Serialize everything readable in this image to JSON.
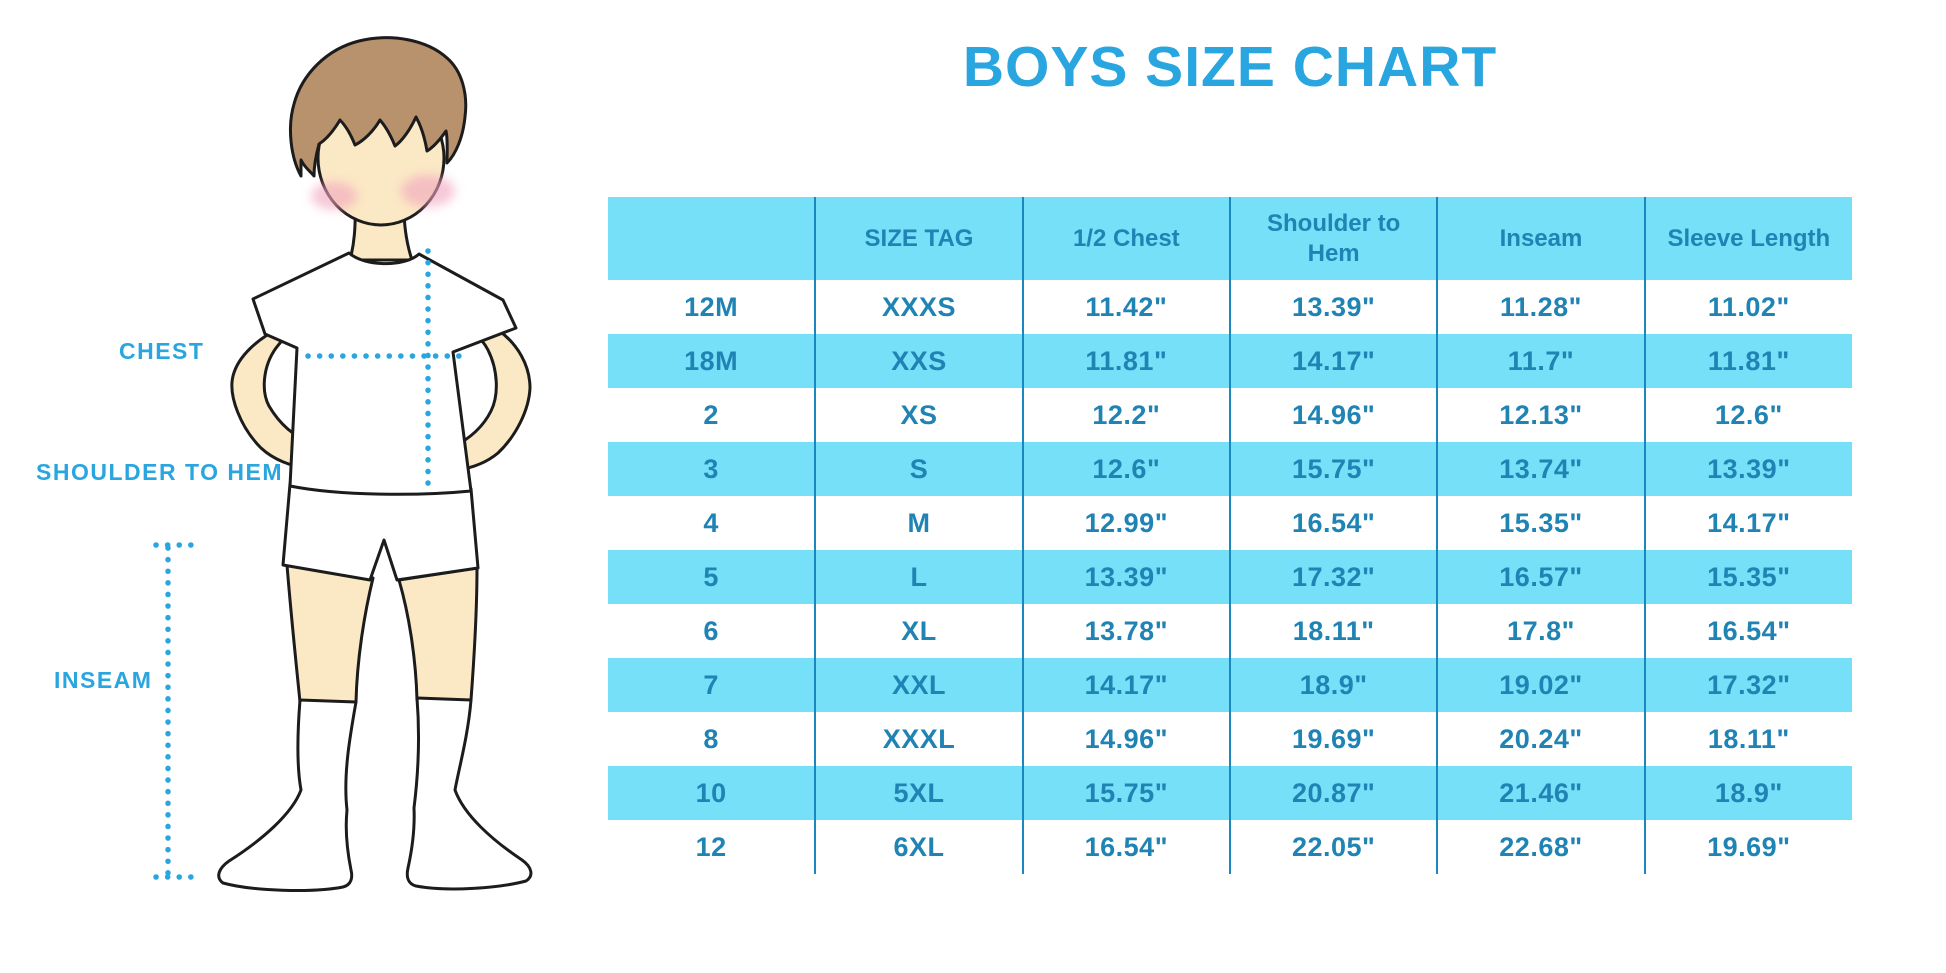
{
  "chart_data": {
    "type": "table",
    "title": "BOYS SIZE CHART",
    "columns": [
      "",
      "SIZE TAG",
      "1/2 Chest",
      "Shoulder to Hem",
      "Inseam",
      "Sleeve Length"
    ],
    "rows": [
      [
        "12M",
        "XXXS",
        "11.42\"",
        "13.39\"",
        "11.28\"",
        "11.02\""
      ],
      [
        "18M",
        "XXS",
        "11.81\"",
        "14.17\"",
        "11.7\"",
        "11.81\""
      ],
      [
        "2",
        "XS",
        "12.2\"",
        "14.96\"",
        "12.13\"",
        "12.6\""
      ],
      [
        "3",
        "S",
        "12.6\"",
        "15.75\"",
        "13.74\"",
        "13.39\""
      ],
      [
        "4",
        "M",
        "12.99\"",
        "16.54\"",
        "15.35\"",
        "14.17\""
      ],
      [
        "5",
        "L",
        "13.39\"",
        "17.32\"",
        "16.57\"",
        "15.35\""
      ],
      [
        "6",
        "XL",
        "13.78\"",
        "18.11\"",
        "17.8\"",
        "16.54\""
      ],
      [
        "7",
        "XXL",
        "14.17\"",
        "18.9\"",
        "19.02\"",
        "17.32\""
      ],
      [
        "8",
        "XXXL",
        "14.96\"",
        "19.69\"",
        "20.24\"",
        "18.11\""
      ],
      [
        "10",
        "5XL",
        "15.75\"",
        "20.87\"",
        "21.46\"",
        "18.9\""
      ],
      [
        "12",
        "6XL",
        "16.54\"",
        "22.05\"",
        "22.68\"",
        "19.69\""
      ]
    ],
    "layout": {
      "header_position": "top",
      "alternating_rows": true
    }
  },
  "diagram": {
    "labels": {
      "chest": "CHEST",
      "shoulder_to_hem": "SHOULDER TO HEM",
      "inseam": "INSEAM"
    }
  },
  "colors": {
    "accent_blue": "#29A6DF",
    "table_fill_cyan": "#75E0F8",
    "table_text": "#1F83B4",
    "grid_line": "#1A88BE",
    "skin": "#FBE8C5",
    "hair": "#B8926C",
    "blush": "#F1A4BE",
    "outline": "#1C1C1C"
  }
}
